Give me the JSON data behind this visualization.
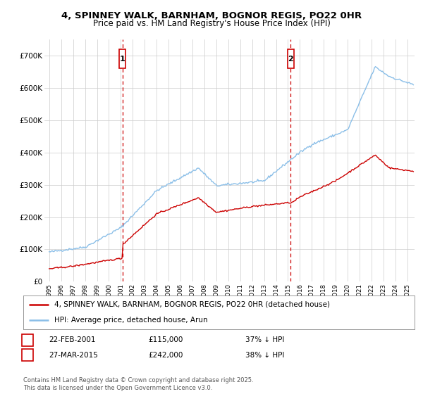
{
  "title": "4, SPINNEY WALK, BARNHAM, BOGNOR REGIS, PO22 0HR",
  "subtitle": "Price paid vs. HM Land Registry's House Price Index (HPI)",
  "ylim": [
    0,
    750000
  ],
  "yticks": [
    0,
    100000,
    200000,
    300000,
    400000,
    500000,
    600000,
    700000
  ],
  "ytick_labels": [
    "£0",
    "£100K",
    "£200K",
    "£300K",
    "£400K",
    "£500K",
    "£600K",
    "£700K"
  ],
  "hpi_color": "#8bbfe8",
  "sale_color": "#cc0000",
  "vline_color": "#cc0000",
  "grid_color": "#cccccc",
  "bg_color": "#ffffff",
  "legend_label_sale": "4, SPINNEY WALK, BARNHAM, BOGNOR REGIS, PO22 0HR (detached house)",
  "legend_label_hpi": "HPI: Average price, detached house, Arun",
  "sale1_date": "22-FEB-2001",
  "sale1_price": "£115,000",
  "sale1_pct": "37% ↓ HPI",
  "sale1_x": 2001.14,
  "sale2_date": "27-MAR-2015",
  "sale2_price": "£242,000",
  "sale2_pct": "38% ↓ HPI",
  "sale2_x": 2015.23,
  "footnote": "Contains HM Land Registry data © Crown copyright and database right 2025.\nThis data is licensed under the Open Government Licence v3.0.",
  "title_fontsize": 9.5,
  "subtitle_fontsize": 8.5,
  "tick_fontsize": 7.5,
  "legend_fontsize": 7.5
}
